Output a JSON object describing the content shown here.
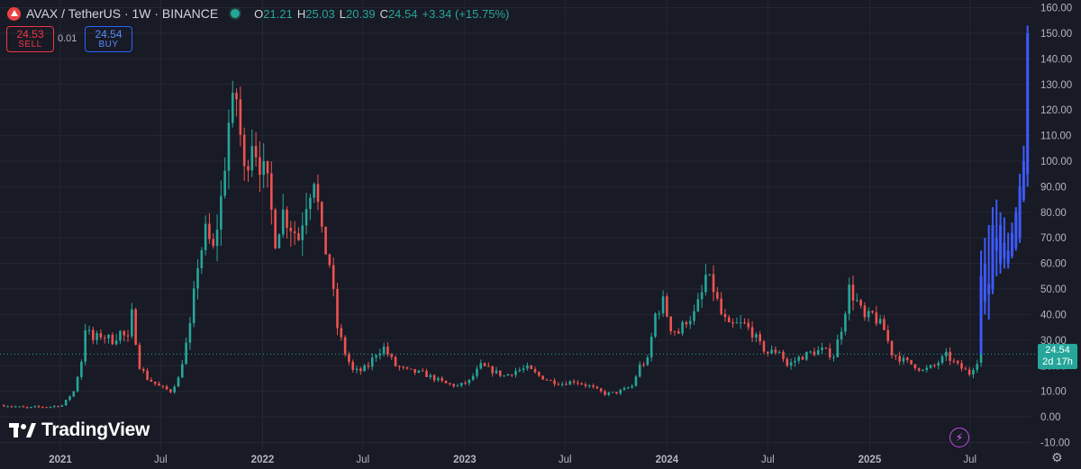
{
  "header": {
    "symbol": "AVAX / TetherUS · 1W · BINANCE",
    "ohlc": [
      {
        "k": "O",
        "v": "21.21"
      },
      {
        "k": "H",
        "v": "25.03"
      },
      {
        "k": "L",
        "v": "20.39"
      },
      {
        "k": "C",
        "v": "24.54"
      }
    ],
    "change": "+3.34 (+15.75%)"
  },
  "trade": {
    "sell_price": "24.53",
    "sell_label": "SELL",
    "spread": "0.01",
    "buy_price": "24.54",
    "buy_label": "BUY"
  },
  "last_price_label": {
    "price": "24.54",
    "countdown": "2d 17h"
  },
  "brand": "TradingView",
  "icons": {
    "coin": "avax-coin-icon",
    "visibility": "eye-icon",
    "settings": "gear-icon",
    "alert": "lightning-icon"
  },
  "colors": {
    "up": "#26a69a",
    "down": "#ef5350",
    "projection": "#3d5afe",
    "background": "#181a25"
  },
  "chart_data": {
    "type": "candlestick",
    "y_axis_position": "right",
    "y_ticks": [
      "160.00",
      "150.00",
      "140.00",
      "130.00",
      "120.00",
      "110.00",
      "100.00",
      "90.00",
      "80.00",
      "70.00",
      "60.00",
      "50.00",
      "40.00",
      "30.00",
      "20.00",
      "10.00",
      "0.00",
      "-10.00"
    ],
    "ylim": [
      -13,
      163
    ],
    "x_ticks": [
      {
        "label": "2021",
        "date": "2021-01-01",
        "bold": true
      },
      {
        "label": "Jul",
        "date": "2021-07-01",
        "bold": false
      },
      {
        "label": "2022",
        "date": "2022-01-01",
        "bold": true
      },
      {
        "label": "Jul",
        "date": "2022-07-01",
        "bold": false
      },
      {
        "label": "2023",
        "date": "2023-01-01",
        "bold": true
      },
      {
        "label": "Jul",
        "date": "2023-07-01",
        "bold": false
      },
      {
        "label": "2024",
        "date": "2024-01-01",
        "bold": true
      },
      {
        "label": "Jul",
        "date": "2024-07-01",
        "bold": false
      },
      {
        "label": "2025",
        "date": "2025-01-01",
        "bold": true
      },
      {
        "label": "Jul",
        "date": "2025-07-01",
        "bold": false
      }
    ],
    "xlim": [
      "2020-09-14",
      "2025-10-20"
    ],
    "last_close": 24.54,
    "series": [
      {
        "kind": "ohlc_close",
        "points": [
          [
            "2020-09-21",
            4.5
          ],
          [
            "2020-10-12",
            4.0
          ],
          [
            "2020-11-02",
            3.5
          ],
          [
            "2020-11-23",
            3.9
          ],
          [
            "2020-12-14",
            4.0
          ],
          [
            "2021-01-04",
            4.5
          ],
          [
            "2021-01-25",
            10.0
          ],
          [
            "2021-02-08",
            22.0
          ],
          [
            "2021-02-15",
            35.0
          ],
          [
            "2021-03-01",
            30.0
          ],
          [
            "2021-03-15",
            32.0
          ],
          [
            "2021-04-05",
            30.0
          ],
          [
            "2021-04-19",
            33.0
          ],
          [
            "2021-05-03",
            30.0
          ],
          [
            "2021-05-10",
            40.0
          ],
          [
            "2021-05-24",
            20.0
          ],
          [
            "2021-06-07",
            15.0
          ],
          [
            "2021-06-28",
            12.0
          ],
          [
            "2021-07-19",
            10.0
          ],
          [
            "2021-08-02",
            15.0
          ],
          [
            "2021-08-23",
            35.0
          ],
          [
            "2021-09-06",
            60.0
          ],
          [
            "2021-09-20",
            72.0
          ],
          [
            "2021-10-04",
            65.0
          ],
          [
            "2021-10-18",
            85.0
          ],
          [
            "2021-11-01",
            115.0
          ],
          [
            "2021-11-15",
            125.0
          ],
          [
            "2021-11-29",
            95.0
          ],
          [
            "2021-12-13",
            110.0
          ],
          [
            "2021-12-27",
            100.0
          ],
          [
            "2022-01-10",
            90.0
          ],
          [
            "2022-01-24",
            70.0
          ],
          [
            "2022-02-07",
            80.0
          ],
          [
            "2022-02-21",
            75.0
          ],
          [
            "2022-03-07",
            70.0
          ],
          [
            "2022-03-21",
            85.0
          ],
          [
            "2022-04-04",
            95.0
          ],
          [
            "2022-04-18",
            70.0
          ],
          [
            "2022-05-02",
            60.0
          ],
          [
            "2022-05-16",
            35.0
          ],
          [
            "2022-05-30",
            25.0
          ],
          [
            "2022-06-13",
            18.0
          ],
          [
            "2022-06-27",
            18.0
          ],
          [
            "2022-07-11",
            20.0
          ],
          [
            "2022-07-25",
            25.0
          ],
          [
            "2022-08-08",
            27.0
          ],
          [
            "2022-08-29",
            20.0
          ],
          [
            "2022-09-19",
            18.0
          ],
          [
            "2022-10-17",
            17.0
          ],
          [
            "2022-11-07",
            15.0
          ],
          [
            "2022-11-28",
            13.0
          ],
          [
            "2022-12-19",
            12.0
          ],
          [
            "2023-01-09",
            14.0
          ],
          [
            "2023-01-30",
            20.0
          ],
          [
            "2023-02-20",
            18.0
          ],
          [
            "2023-03-13",
            16.0
          ],
          [
            "2023-04-03",
            18.0
          ],
          [
            "2023-04-24",
            19.0
          ],
          [
            "2023-05-15",
            16.0
          ],
          [
            "2023-06-05",
            14.0
          ],
          [
            "2023-06-26",
            13.0
          ],
          [
            "2023-07-17",
            14.0
          ],
          [
            "2023-08-14",
            12.0
          ],
          [
            "2023-09-11",
            9.0
          ],
          [
            "2023-10-02",
            9.5
          ],
          [
            "2023-10-30",
            12.0
          ],
          [
            "2023-11-13",
            20.0
          ],
          [
            "2023-11-27",
            22.0
          ],
          [
            "2023-12-11",
            40.0
          ],
          [
            "2023-12-25",
            45.0
          ],
          [
            "2024-01-08",
            35.0
          ],
          [
            "2024-01-22",
            33.0
          ],
          [
            "2024-02-05",
            38.0
          ],
          [
            "2024-02-19",
            40.0
          ],
          [
            "2024-03-04",
            48.0
          ],
          [
            "2024-03-11",
            55.0
          ],
          [
            "2024-03-25",
            50.0
          ],
          [
            "2024-04-08",
            40.0
          ],
          [
            "2024-04-22",
            35.0
          ],
          [
            "2024-05-06",
            36.0
          ],
          [
            "2024-05-20",
            36.0
          ],
          [
            "2024-06-03",
            33.0
          ],
          [
            "2024-06-17",
            28.0
          ],
          [
            "2024-07-01",
            25.0
          ],
          [
            "2024-07-22",
            26.0
          ],
          [
            "2024-08-05",
            20.0
          ],
          [
            "2024-08-26",
            23.0
          ],
          [
            "2024-09-16",
            25.0
          ],
          [
            "2024-10-07",
            26.0
          ],
          [
            "2024-10-28",
            24.0
          ],
          [
            "2024-11-11",
            35.0
          ],
          [
            "2024-11-25",
            50.0
          ],
          [
            "2024-12-09",
            45.0
          ],
          [
            "2024-12-23",
            38.0
          ],
          [
            "2025-01-06",
            40.0
          ],
          [
            "2025-01-27",
            34.0
          ],
          [
            "2025-02-10",
            25.0
          ],
          [
            "2025-03-03",
            22.0
          ],
          [
            "2025-03-24",
            20.0
          ],
          [
            "2025-04-07",
            18.0
          ],
          [
            "2025-04-28",
            20.0
          ],
          [
            "2025-05-19",
            24.0
          ],
          [
            "2025-06-09",
            20.0
          ],
          [
            "2025-06-30",
            17.0
          ],
          [
            "2025-07-14",
            22.0
          ],
          [
            "2025-07-21",
            24.54
          ]
        ]
      },
      {
        "kind": "projection_ohlc",
        "points": [
          [
            "2025-07-21",
            24.54,
            65.0,
            24.54,
            55.0
          ],
          [
            "2025-07-28",
            45.0,
            70.0,
            40.0,
            60.0
          ],
          [
            "2025-08-04",
            52.0,
            75.0,
            38.0,
            48.0
          ],
          [
            "2025-08-11",
            50.0,
            82.0,
            48.0,
            75.0
          ],
          [
            "2025-08-18",
            65.0,
            85.0,
            55.0,
            70.0
          ],
          [
            "2025-08-25",
            60.0,
            80.0,
            56.0,
            75.0
          ],
          [
            "2025-09-01",
            62.0,
            78.0,
            58.0,
            68.0
          ],
          [
            "2025-09-08",
            65.0,
            72.0,
            58.0,
            60.0
          ],
          [
            "2025-09-15",
            63.0,
            76.0,
            62.0,
            72.0
          ],
          [
            "2025-09-22",
            66.0,
            82.0,
            65.0,
            80.0
          ],
          [
            "2025-09-29",
            70.0,
            95.0,
            68.0,
            90.0
          ],
          [
            "2025-10-06",
            85.0,
            106.0,
            84.0,
            100.0
          ],
          [
            "2025-10-13",
            95.0,
            153.0,
            90.0,
            150.0
          ]
        ]
      }
    ]
  }
}
